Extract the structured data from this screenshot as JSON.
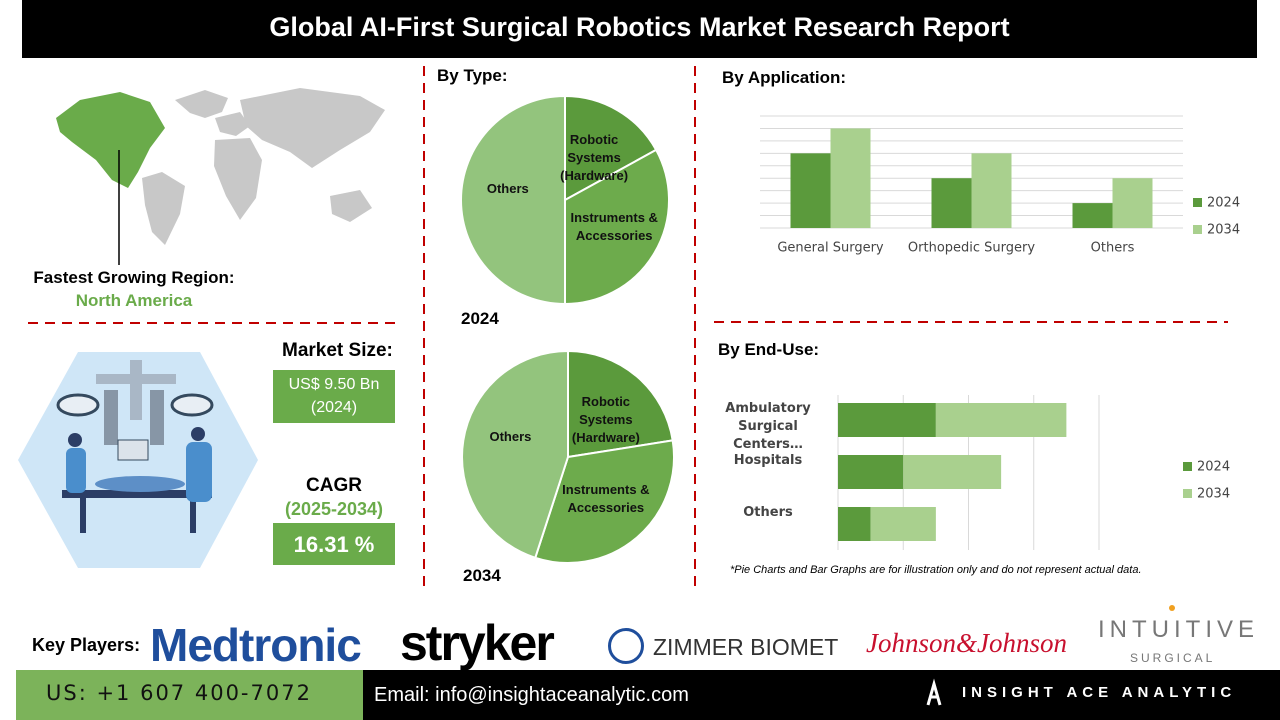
{
  "header": {
    "title": "Global AI-First Surgical Robotics Market Research Report"
  },
  "region": {
    "label": "Fastest Growing Region:",
    "value": "North America"
  },
  "market_size": {
    "label": "Market Size:",
    "value": "US$ 9.50 Bn",
    "year": "(2024)"
  },
  "cagr": {
    "label": "CAGR",
    "period": "(2025-2034)",
    "value": "16.31 %"
  },
  "chart_data": [
    {
      "type": "pie",
      "title": "By Type:",
      "subtitle": "2024",
      "categories": [
        "Robotic Systems (Hardware)",
        "Instruments & Accessories",
        "Others"
      ],
      "values": [
        17,
        33,
        50
      ],
      "colors": [
        "#5b9a3c",
        "#6dab4c",
        "#93c47d"
      ]
    },
    {
      "type": "pie",
      "subtitle": "2034",
      "categories": [
        "Robotic Systems (Hardware)",
        "Instruments & Accessories",
        "Others"
      ],
      "values": [
        22.5,
        32.5,
        45
      ],
      "colors": [
        "#5b9a3c",
        "#6dab4c",
        "#93c47d"
      ]
    },
    {
      "type": "bar",
      "title": "By Application:",
      "categories": [
        "General Surgery",
        "Orthopedic Surgery",
        "Others"
      ],
      "series": [
        {
          "name": "2024",
          "color": "#5b9a3c",
          "values": [
            3,
            2,
            1
          ]
        },
        {
          "name": "2034",
          "color": "#a9d08e",
          "values": [
            4,
            3,
            2
          ]
        }
      ],
      "ylim": [
        0,
        4.5
      ],
      "yticks": [
        0,
        0.5,
        1,
        1.5,
        2,
        2.5,
        3,
        3.5,
        4,
        4.5
      ],
      "grid": true,
      "legend": "right"
    },
    {
      "type": "hbar",
      "stacked": true,
      "title": "By End-Use:",
      "categories": [
        "Ambulatory Surgical Centers…",
        "Hospitals",
        "Others"
      ],
      "series": [
        {
          "name": "2024",
          "color": "#5b9a3c",
          "values": [
            1.5,
            1,
            0.5
          ]
        },
        {
          "name": "2034",
          "color": "#a9d08e",
          "values": [
            2,
            1.5,
            1
          ]
        }
      ],
      "xlim": [
        0,
        4
      ],
      "xticks": [
        0,
        1,
        2,
        3,
        4
      ],
      "grid": true,
      "legend": "right"
    }
  ],
  "footnote": "*Pie Charts and Bar Graphs are for illustration only and do not represent actual data.",
  "key_players": {
    "label": "Key Players:",
    "names": [
      "Medtronic",
      "stryker",
      "ZIMMER BIOMET",
      "Johnson&Johnson",
      "INTUITIVE",
      "SURGICAL"
    ]
  },
  "contact": {
    "phone": "US: +1 607 400-7072",
    "email": "Email: info@insightaceanalytic.com",
    "brand": "INSIGHT ACE ANALYTIC"
  }
}
